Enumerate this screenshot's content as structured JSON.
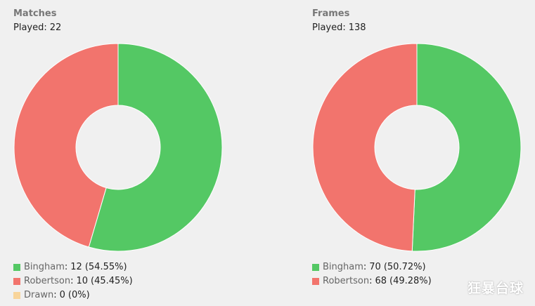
{
  "chart_data": [
    {
      "type": "pie",
      "title": "Matches",
      "subtitle_label": "Played:",
      "subtitle_value": "22",
      "series": [
        {
          "name": "Bingham",
          "value": 12,
          "percent": "54.55%",
          "color": "#54c864"
        },
        {
          "name": "Robertson",
          "value": 10,
          "percent": "45.45%",
          "color": "#f2746d"
        },
        {
          "name": "Drawn",
          "value": 0,
          "percent": "0%",
          "color": "#f8d49a"
        }
      ]
    },
    {
      "type": "pie",
      "title": "Frames",
      "subtitle_label": "Played:",
      "subtitle_value": "138",
      "series": [
        {
          "name": "Bingham",
          "value": 70,
          "percent": "50.72%",
          "color": "#54c864"
        },
        {
          "name": "Robertson",
          "value": 68,
          "percent": "49.28%",
          "color": "#f2746d"
        }
      ]
    }
  ],
  "watermark": "狂暴台球",
  "colors": {
    "background": "#f0f0f0",
    "title": "#777777"
  }
}
